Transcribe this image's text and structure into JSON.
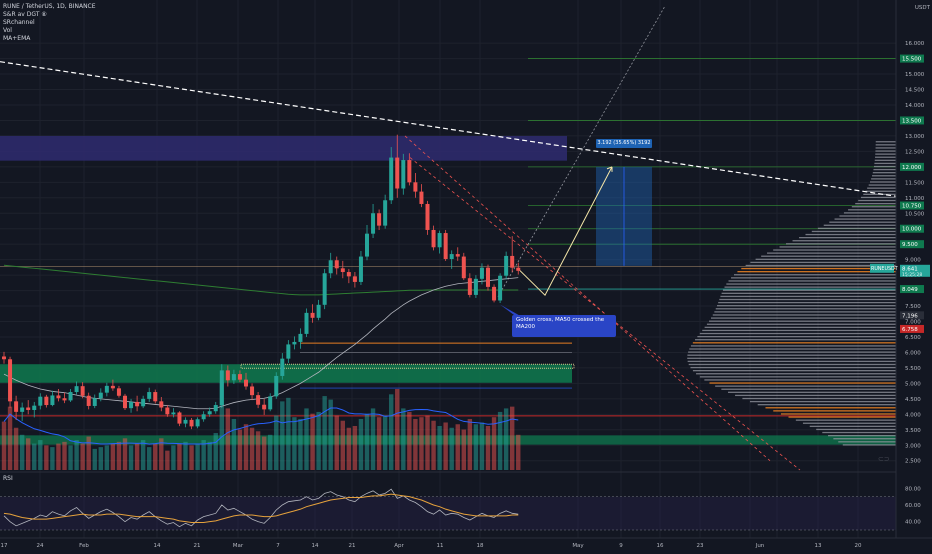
{
  "header": {
    "symbol_line": "RUNE / TetherUS, 1D, BINANCE",
    "indicators": [
      "S&R av DGT ⑧",
      "SRchannel",
      "Vol",
      "MA+EMA"
    ]
  },
  "rsi_label": "RSI",
  "currency_label": "USDT",
  "colors": {
    "background": "#131722",
    "up": "#26a69a",
    "down": "#ef5350",
    "zone_green": "#0f7a4f",
    "zone_purple": "#2e2a6b"
  },
  "chart_data": {
    "type": "candlestick",
    "symbol": "RUNE / TetherUS",
    "timeframe": "1D",
    "exchange": "BINANCE",
    "price_axis": {
      "range": [
        2.2,
        17.2
      ],
      "ticks": [
        "16.000",
        "15.500",
        "15.000",
        "14.500",
        "14.000",
        "13.500",
        "13.000",
        "12.500",
        "12.000",
        "11.500",
        "11.000",
        "10.500",
        "10.000",
        "9.500",
        "9.000",
        "8.500",
        "8.000",
        "7.500",
        "7.000",
        "6.500",
        "6.000",
        "5.500",
        "5.000",
        "4.500",
        "4.000",
        "3.500",
        "3.000",
        "2.500"
      ]
    },
    "price_tags": [
      {
        "text": "15.500",
        "price": 15.5,
        "color": "#0f7a4f"
      },
      {
        "text": "13.500",
        "price": 13.5,
        "color": "#0f7a4f"
      },
      {
        "text": "12.000",
        "price": 12.0,
        "color": "#0f7a4f"
      },
      {
        "text": "10.750",
        "price": 10.75,
        "color": "#0f7a4f"
      },
      {
        "text": "10.000",
        "price": 10.0,
        "color": "#0f7a4f"
      },
      {
        "text": "9.500",
        "price": 9.5,
        "color": "#0f7a4f"
      },
      {
        "text": "8.049",
        "price": 8.05,
        "color": "#0f7a4f"
      },
      {
        "text": "7.196",
        "price": 7.2,
        "color": "#2a2e39"
      },
      {
        "text": "6.758",
        "price": 6.76,
        "color": "#c62828"
      }
    ],
    "current_price": {
      "symbol": "RUNEUSDT",
      "value": "8.641",
      "countdown": "15:25:28"
    },
    "time_axis": [
      "17",
      "24",
      "Feb",
      "14",
      "21",
      "Mar",
      "7",
      "14",
      "21",
      "Apr",
      "11",
      "18",
      "May",
      "9",
      "16",
      "23",
      "Jun",
      "13",
      "20"
    ],
    "candles": [
      [
        5.87,
        6.02,
        5.64,
        5.78
      ],
      [
        5.78,
        5.86,
        4.2,
        4.42
      ],
      [
        4.42,
        4.6,
        3.82,
        4.08
      ],
      [
        4.08,
        4.38,
        3.78,
        4.22
      ],
      [
        4.22,
        4.46,
        4.0,
        4.14
      ],
      [
        4.14,
        4.4,
        3.9,
        4.28
      ],
      [
        4.28,
        4.68,
        4.16,
        4.57
      ],
      [
        4.57,
        4.63,
        4.22,
        4.3
      ],
      [
        4.3,
        4.76,
        4.26,
        4.61
      ],
      [
        4.61,
        4.82,
        4.42,
        4.52
      ],
      [
        4.52,
        4.7,
        4.36,
        4.45
      ],
      [
        4.45,
        4.82,
        4.4,
        4.72
      ],
      [
        4.72,
        5.06,
        4.64,
        4.91
      ],
      [
        4.91,
        5.04,
        4.52,
        4.6
      ],
      [
        4.6,
        4.7,
        4.16,
        4.27
      ],
      [
        4.27,
        4.64,
        4.2,
        4.52
      ],
      [
        4.52,
        4.84,
        4.42,
        4.7
      ],
      [
        4.7,
        5.02,
        4.58,
        4.92
      ],
      [
        4.92,
        5.12,
        4.76,
        4.84
      ],
      [
        4.84,
        4.92,
        4.54,
        4.6
      ],
      [
        4.6,
        4.66,
        4.14,
        4.2
      ],
      [
        4.2,
        4.5,
        4.05,
        4.4
      ],
      [
        4.4,
        4.6,
        4.1,
        4.26
      ],
      [
        4.26,
        4.6,
        4.2,
        4.5
      ],
      [
        4.5,
        4.86,
        4.4,
        4.72
      ],
      [
        4.72,
        4.8,
        4.35,
        4.42
      ],
      [
        4.42,
        4.56,
        4.1,
        4.22
      ],
      [
        4.22,
        4.3,
        3.92,
        4.0
      ],
      [
        4.0,
        4.2,
        3.9,
        4.06
      ],
      [
        4.06,
        4.1,
        3.62,
        3.7
      ],
      [
        3.7,
        3.9,
        3.58,
        3.82
      ],
      [
        3.82,
        3.88,
        3.52,
        3.61
      ],
      [
        3.61,
        3.9,
        3.55,
        3.84
      ],
      [
        3.84,
        4.1,
        3.76,
        4.0
      ],
      [
        4.0,
        4.22,
        3.92,
        4.1
      ],
      [
        4.1,
        4.4,
        4.02,
        4.3
      ],
      [
        4.3,
        5.62,
        4.2,
        5.42
      ],
      [
        5.42,
        5.58,
        4.9,
        5.1
      ],
      [
        5.1,
        5.44,
        4.98,
        5.3
      ],
      [
        5.3,
        5.42,
        5.04,
        5.12
      ],
      [
        5.12,
        5.34,
        4.8,
        4.9
      ],
      [
        4.9,
        5.0,
        4.46,
        4.62
      ],
      [
        4.62,
        4.72,
        4.2,
        4.31
      ],
      [
        4.31,
        4.5,
        3.98,
        4.16
      ],
      [
        4.16,
        4.68,
        4.1,
        4.58
      ],
      [
        4.58,
        5.36,
        4.5,
        5.24
      ],
      [
        5.24,
        5.98,
        5.12,
        5.8
      ],
      [
        5.8,
        6.4,
        5.66,
        6.26
      ],
      [
        6.26,
        6.52,
        6.1,
        6.34
      ],
      [
        6.34,
        6.78,
        6.12,
        6.6
      ],
      [
        6.6,
        7.42,
        6.5,
        7.28
      ],
      [
        7.28,
        7.56,
        6.96,
        7.12
      ],
      [
        7.12,
        7.7,
        7.04,
        7.54
      ],
      [
        7.54,
        8.7,
        7.4,
        8.56
      ],
      [
        8.56,
        9.22,
        8.4,
        8.98
      ],
      [
        8.98,
        9.1,
        8.52,
        8.72
      ],
      [
        8.72,
        8.96,
        8.4,
        8.6
      ],
      [
        8.6,
        8.7,
        8.24,
        8.46
      ],
      [
        8.46,
        8.6,
        8.1,
        8.28
      ],
      [
        8.28,
        9.28,
        8.18,
        9.1
      ],
      [
        9.1,
        10.12,
        8.98,
        9.84
      ],
      [
        9.84,
        10.8,
        9.7,
        10.5
      ],
      [
        10.5,
        10.62,
        9.96,
        10.1
      ],
      [
        10.1,
        11.1,
        10.0,
        10.92
      ],
      [
        10.92,
        12.64,
        10.8,
        12.3
      ],
      [
        12.3,
        13.04,
        11.0,
        11.3
      ],
      [
        11.3,
        12.42,
        11.1,
        12.22
      ],
      [
        12.22,
        12.44,
        11.4,
        11.5
      ],
      [
        11.5,
        11.8,
        11.0,
        11.2
      ],
      [
        11.2,
        11.44,
        10.7,
        10.8
      ],
      [
        10.8,
        10.9,
        9.8,
        9.96
      ],
      [
        9.96,
        10.1,
        9.3,
        9.4
      ],
      [
        9.4,
        9.94,
        9.2,
        9.86
      ],
      [
        9.86,
        9.96,
        8.96,
        9.02
      ],
      [
        9.02,
        9.3,
        8.7,
        9.18
      ],
      [
        9.18,
        9.4,
        8.96,
        9.1
      ],
      [
        9.1,
        9.22,
        8.34,
        8.4
      ],
      [
        8.4,
        8.56,
        7.78,
        7.86
      ],
      [
        7.86,
        8.5,
        7.76,
        8.38
      ],
      [
        8.38,
        8.88,
        8.2,
        8.74
      ],
      [
        8.74,
        8.84,
        8.0,
        8.12
      ],
      [
        8.12,
        8.2,
        7.62,
        7.68
      ],
      [
        7.68,
        8.56,
        7.6,
        8.48
      ],
      [
        8.48,
        9.26,
        8.36,
        9.12
      ],
      [
        9.12,
        9.76,
        8.6,
        8.74
      ],
      [
        8.74,
        8.9,
        8.52,
        8.64
      ]
    ],
    "volume_scale_max": 100,
    "volume": [
      55,
      72,
      48,
      40,
      36,
      30,
      34,
      28,
      26,
      30,
      32,
      28,
      34,
      30,
      38,
      24,
      26,
      28,
      30,
      32,
      36,
      28,
      30,
      34,
      26,
      30,
      36,
      22,
      28,
      30,
      32,
      28,
      30,
      34,
      32,
      42,
      100,
      70,
      58,
      46,
      52,
      48,
      44,
      38,
      40,
      62,
      78,
      82,
      60,
      58,
      70,
      64,
      66,
      84,
      80,
      62,
      56,
      48,
      50,
      58,
      64,
      70,
      60,
      62,
      86,
      92,
      70,
      66,
      58,
      60,
      62,
      56,
      50,
      54,
      48,
      52,
      46,
      58,
      52,
      54,
      50,
      60,
      66,
      70,
      72,
      40
    ],
    "sma_fast": [
      5.3,
      5.2,
      5.1,
      5.02,
      4.94,
      4.88,
      4.82,
      4.78,
      4.74,
      4.72,
      4.7,
      4.66,
      4.62,
      4.58,
      4.54,
      4.52,
      4.5,
      4.48,
      4.46,
      4.44,
      4.42,
      4.4,
      4.38,
      4.36,
      4.34,
      4.32,
      4.3,
      4.28,
      4.26,
      4.24,
      4.22,
      4.2,
      4.18,
      4.18,
      4.18,
      4.2,
      4.26,
      4.32,
      4.38,
      4.42,
      4.46,
      4.48,
      4.5,
      4.52,
      4.56,
      4.62,
      4.7,
      4.8,
      4.9,
      5.0,
      5.12,
      5.24,
      5.36,
      5.52,
      5.68,
      5.84,
      5.98,
      6.12,
      6.26,
      6.42,
      6.58,
      6.76,
      6.92,
      7.08,
      7.26,
      7.4,
      7.54,
      7.66,
      7.76,
      7.86,
      7.94,
      8.02,
      8.08,
      8.14,
      8.18,
      8.22,
      8.24,
      8.26,
      8.28,
      8.3,
      8.32,
      8.34,
      8.36,
      8.38,
      8.4,
      8.42
    ],
    "sma_slow": [
      8.82,
      8.8,
      8.78,
      8.76,
      8.74,
      8.72,
      8.7,
      8.68,
      8.66,
      8.64,
      8.62,
      8.6,
      8.58,
      8.56,
      8.54,
      8.52,
      8.5,
      8.48,
      8.46,
      8.44,
      8.42,
      8.4,
      8.38,
      8.36,
      8.34,
      8.32,
      8.3,
      8.28,
      8.26,
      8.24,
      8.22,
      8.2,
      8.18,
      8.16,
      8.14,
      8.12,
      8.1,
      8.08,
      8.06,
      8.04,
      8.02,
      8.0,
      7.98,
      7.96,
      7.94,
      7.92,
      7.9,
      7.88,
      7.87,
      7.86,
      7.86,
      7.86,
      7.86,
      7.87,
      7.88,
      7.89,
      7.9,
      7.91,
      7.92,
      7.93,
      7.94,
      7.95,
      7.96,
      7.97,
      7.98,
      7.99,
      8.0,
      8.01,
      8.01,
      8.01,
      8.02,
      8.02,
      8.02,
      8.02,
      8.02,
      8.02,
      8.02,
      8.02,
      8.02,
      8.02,
      8.02,
      8.02,
      8.02,
      8.02,
      8.02,
      8.02
    ],
    "rsi": {
      "ticks": [
        "80.00",
        "60.00",
        "40.00"
      ],
      "bands": [
        70,
        30
      ],
      "rsi_values": [
        47,
        40,
        35,
        38,
        41,
        44,
        48,
        46,
        52,
        49,
        47,
        53,
        57,
        50,
        44,
        48,
        52,
        55,
        51,
        46,
        40,
        45,
        43,
        48,
        52,
        46,
        41,
        37,
        39,
        34,
        38,
        35,
        42,
        46,
        48,
        50,
        60,
        54,
        56,
        52,
        48,
        43,
        40,
        38,
        45,
        54,
        60,
        64,
        65,
        66,
        70,
        66,
        68,
        74,
        76,
        72,
        70,
        66,
        64,
        70,
        74,
        77,
        72,
        74,
        79,
        68,
        71,
        66,
        63,
        58,
        52,
        49,
        54,
        48,
        50,
        49,
        45,
        42,
        46,
        50,
        47,
        45,
        50,
        53,
        50,
        49
      ],
      "rsi_ma": [
        50,
        49,
        47,
        45,
        44,
        43,
        43,
        43,
        44,
        45,
        46,
        47,
        48,
        49,
        48,
        48,
        48,
        49,
        49,
        49,
        48,
        47,
        46,
        46,
        46,
        46,
        45,
        44,
        43,
        41,
        40,
        39,
        39,
        39,
        40,
        41,
        43,
        45,
        47,
        48,
        48,
        48,
        47,
        46,
        46,
        47,
        49,
        51,
        53,
        55,
        58,
        60,
        62,
        64,
        66,
        67,
        68,
        69,
        69,
        69,
        70,
        71,
        71,
        72,
        73,
        72,
        71,
        70,
        68,
        66,
        63,
        60,
        58,
        55,
        53,
        51,
        49,
        48,
        47,
        47,
        47,
        47,
        47,
        47,
        48,
        48
      ]
    },
    "annotations": [
      {
        "text": "Golden cross, MA50 crossed the MA200"
      },
      {
        "text": "3.192 (35.65%) 3192"
      }
    ]
  }
}
